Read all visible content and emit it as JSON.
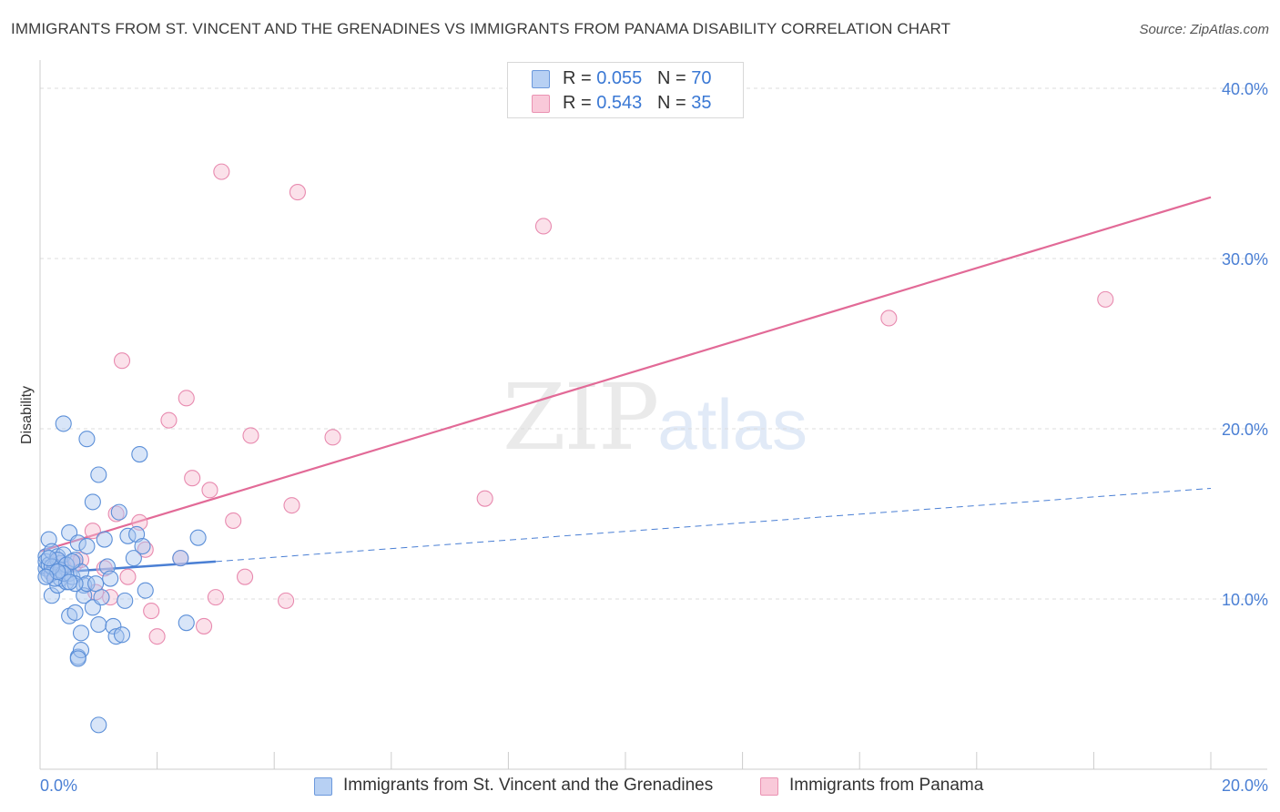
{
  "title": "IMMIGRANTS FROM ST. VINCENT AND THE GRENADINES VS IMMIGRANTS FROM PANAMA DISABILITY CORRELATION CHART",
  "source": "Source: ZipAtlas.com",
  "watermark": {
    "zip": "ZIP",
    "atlas": "atlas"
  },
  "legend_top": [
    {
      "r_label": "R =",
      "r_value": "0.055",
      "n_label": "N =",
      "n_value": "70"
    },
    {
      "r_label": "R =",
      "r_value": "0.543",
      "n_label": "N =",
      "n_value": "35"
    }
  ],
  "chart_data": {
    "type": "scatter",
    "title": "IMMIGRANTS FROM ST. VINCENT AND THE GRENADINES VS IMMIGRANTS FROM PANAMA DISABILITY CORRELATION CHART",
    "xlabel": "",
    "ylabel": "Disability",
    "xlim": [
      0,
      20
    ],
    "ylim": [
      0,
      40
    ],
    "x_tick_labels": [
      "0.0%",
      "20.0%"
    ],
    "y_ticks": [
      10,
      20,
      30,
      40
    ],
    "y_tick_labels": [
      "10.0%",
      "20.0%",
      "30.0%",
      "40.0%"
    ],
    "colors": {
      "series1": "#4a7fd4",
      "series2": "#e26a97",
      "series1_fill": "#a9c6f0",
      "series2_fill": "#f7bcd0"
    },
    "series": [
      {
        "name": "Immigrants from St. Vincent and the Grenadines",
        "R": 0.055,
        "N": 70,
        "trend": {
          "x0": 0,
          "y0": 11.5,
          "x1": 3.0,
          "y1": 12.2,
          "dashed_x1": 20,
          "dashed_y1": 16.5
        },
        "points": [
          [
            0.1,
            12.5
          ],
          [
            0.1,
            11.8
          ],
          [
            0.1,
            12.2
          ],
          [
            0.15,
            13.5
          ],
          [
            0.15,
            12.0
          ],
          [
            0.2,
            11.5
          ],
          [
            0.2,
            12.8
          ],
          [
            0.2,
            10.2
          ],
          [
            0.25,
            11.9
          ],
          [
            0.3,
            12.5
          ],
          [
            0.3,
            10.8
          ],
          [
            0.35,
            11.2
          ],
          [
            0.35,
            12.1
          ],
          [
            0.4,
            20.3
          ],
          [
            0.4,
            12.6
          ],
          [
            0.45,
            11.0
          ],
          [
            0.5,
            9.0
          ],
          [
            0.5,
            11.5
          ],
          [
            0.5,
            13.9
          ],
          [
            0.55,
            11.3
          ],
          [
            0.6,
            9.2
          ],
          [
            0.6,
            12.3
          ],
          [
            0.65,
            6.6
          ],
          [
            0.7,
            7.0
          ],
          [
            0.7,
            8.0
          ],
          [
            0.7,
            11.6
          ],
          [
            0.75,
            10.8
          ],
          [
            0.75,
            10.2
          ],
          [
            0.8,
            19.4
          ],
          [
            0.8,
            10.9
          ],
          [
            0.9,
            15.7
          ],
          [
            0.9,
            9.5
          ],
          [
            0.95,
            10.9
          ],
          [
            1.0,
            8.5
          ],
          [
            1.0,
            17.3
          ],
          [
            1.05,
            10.1
          ],
          [
            1.1,
            13.5
          ],
          [
            1.15,
            11.9
          ],
          [
            1.2,
            11.2
          ],
          [
            1.25,
            8.4
          ],
          [
            1.3,
            7.8
          ],
          [
            1.35,
            15.1
          ],
          [
            1.4,
            7.9
          ],
          [
            1.45,
            9.9
          ],
          [
            1.5,
            13.7
          ],
          [
            1.6,
            12.4
          ],
          [
            1.65,
            13.8
          ],
          [
            1.7,
            18.5
          ],
          [
            1.75,
            13.1
          ],
          [
            1.8,
            10.5
          ],
          [
            2.4,
            12.4
          ],
          [
            2.5,
            8.6
          ],
          [
            2.7,
            13.6
          ],
          [
            0.15,
            11.4
          ],
          [
            0.25,
            11.2
          ],
          [
            0.3,
            12.3
          ],
          [
            0.35,
            11.7
          ],
          [
            0.45,
            12.0
          ],
          [
            0.55,
            12.2
          ],
          [
            0.6,
            10.9
          ],
          [
            0.4,
            11.5
          ],
          [
            0.2,
            11.9
          ],
          [
            0.3,
            11.6
          ],
          [
            0.5,
            11.0
          ],
          [
            0.65,
            13.3
          ],
          [
            0.15,
            12.4
          ],
          [
            1.0,
            2.6
          ],
          [
            0.65,
            6.5
          ],
          [
            0.8,
            13.1
          ],
          [
            0.1,
            11.3
          ]
        ]
      },
      {
        "name": "Immigrants from Panama",
        "R": 0.543,
        "N": 35,
        "trend": {
          "x0": 0,
          "y0": 12.8,
          "x1": 20,
          "y1": 33.6
        },
        "points": [
          [
            3.1,
            35.1
          ],
          [
            4.4,
            33.9
          ],
          [
            8.6,
            31.9
          ],
          [
            1.4,
            24.0
          ],
          [
            2.5,
            21.8
          ],
          [
            2.2,
            20.5
          ],
          [
            3.6,
            19.6
          ],
          [
            5.0,
            19.5
          ],
          [
            2.6,
            17.1
          ],
          [
            2.9,
            16.4
          ],
          [
            4.3,
            15.5
          ],
          [
            7.6,
            15.9
          ],
          [
            3.3,
            14.6
          ],
          [
            1.7,
            14.5
          ],
          [
            1.3,
            15.0
          ],
          [
            0.9,
            14.0
          ],
          [
            1.8,
            12.9
          ],
          [
            2.4,
            12.4
          ],
          [
            1.1,
            11.8
          ],
          [
            0.3,
            12.3
          ],
          [
            0.6,
            12.1
          ],
          [
            1.5,
            11.3
          ],
          [
            3.5,
            11.3
          ],
          [
            3.0,
            10.1
          ],
          [
            4.2,
            9.9
          ],
          [
            1.9,
            9.3
          ],
          [
            2.0,
            7.8
          ],
          [
            2.8,
            8.4
          ],
          [
            0.95,
            10.4
          ],
          [
            14.5,
            26.5
          ],
          [
            18.2,
            27.6
          ],
          [
            0.4,
            11.9
          ],
          [
            0.7,
            12.3
          ],
          [
            0.2,
            11.6
          ],
          [
            1.2,
            10.1
          ]
        ]
      }
    ]
  },
  "legend_bottom": [
    "Immigrants from St. Vincent and the Grenadines",
    "Immigrants from Panama"
  ]
}
